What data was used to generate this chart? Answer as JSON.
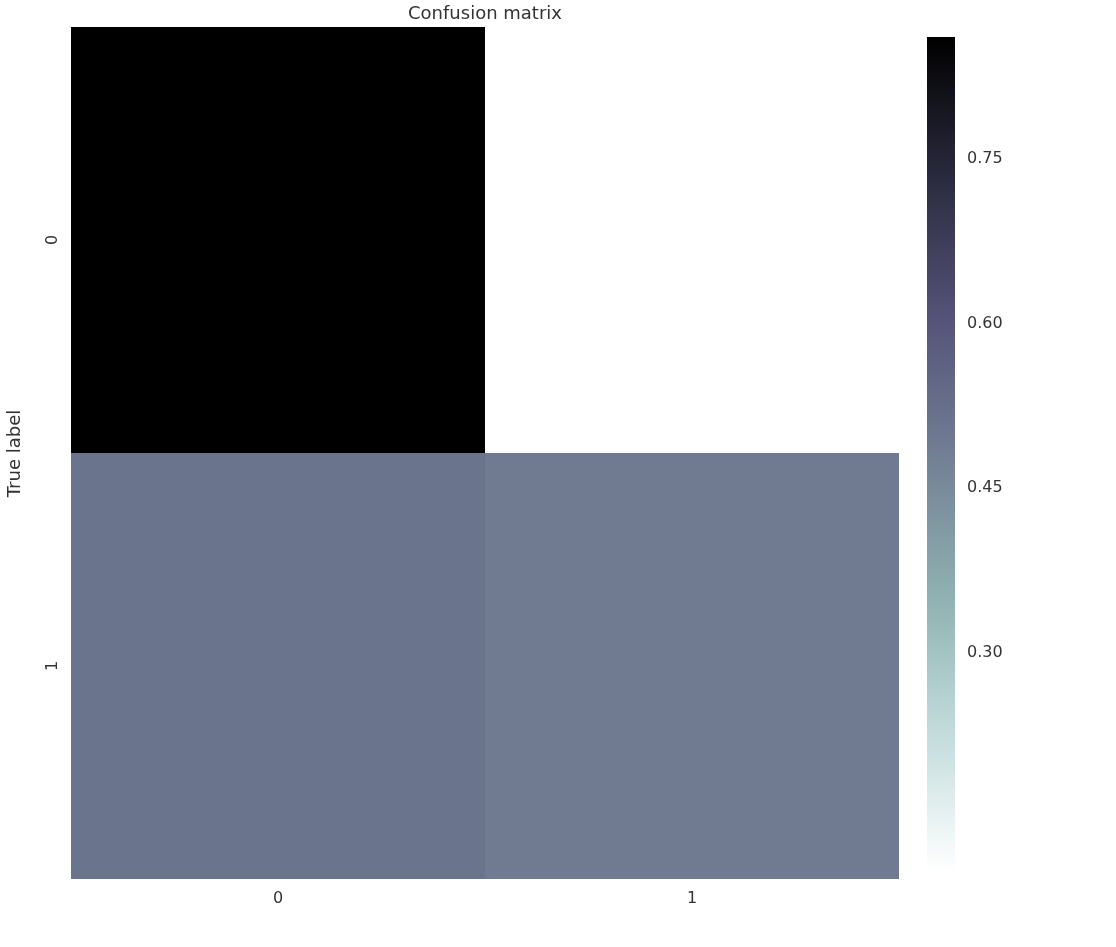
{
  "chart_data": {
    "type": "heatmap",
    "title": "Confusion matrix",
    "ylabel": "True label",
    "categories": [
      "0",
      "1"
    ],
    "y_categories": [
      "0",
      "1"
    ],
    "cells": [
      [
        0.86,
        0.1
      ],
      [
        0.51,
        0.49
      ]
    ],
    "clim": [
      0.1,
      0.86
    ],
    "cticks": [
      {
        "value": 0.3,
        "label": "0.30"
      },
      {
        "value": 0.45,
        "label": "0.45"
      },
      {
        "value": 0.6,
        "label": "0.60"
      },
      {
        "value": 0.75,
        "label": "0.75"
      }
    ],
    "grid": false
  }
}
